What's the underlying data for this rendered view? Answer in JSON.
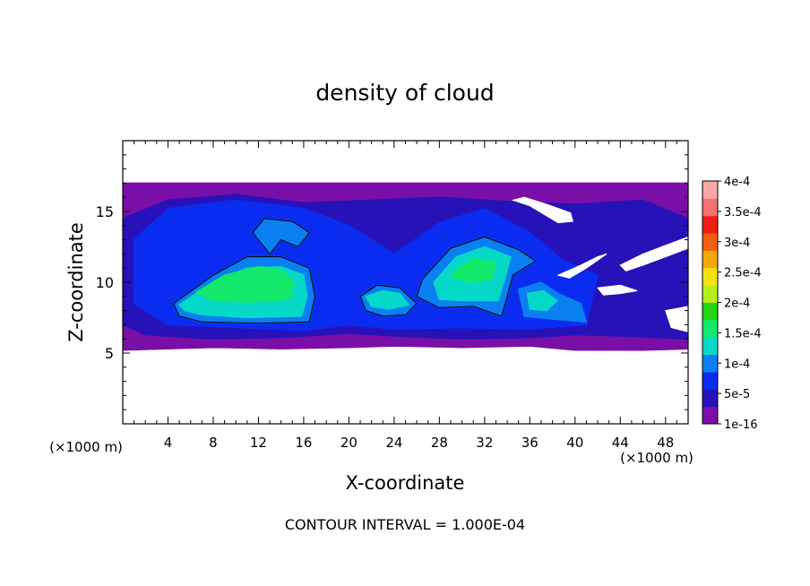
{
  "chart_data": {
    "type": "heatmap",
    "title": "density of cloud",
    "xlabel": "X-coordinate",
    "ylabel": "Z-coordinate",
    "x_unit_left": "(×1000 m)",
    "x_unit_right": "(×1000 m)",
    "xlim": [
      0,
      50
    ],
    "ylim": [
      0,
      20
    ],
    "x_ticks": [
      4,
      8,
      12,
      16,
      20,
      24,
      28,
      32,
      36,
      40,
      44,
      48
    ],
    "y_ticks": [
      5,
      10,
      15
    ],
    "footnote": "CONTOUR INTERVAL = 1.000E-04",
    "colorbar": {
      "labels": [
        "1e-16",
        "5e-5",
        "1e-4",
        "1.5e-4",
        "2e-4",
        "2.5e-4",
        "3e-4",
        "3.5e-4",
        "4e-4"
      ],
      "colors": [
        "#7a0fa8",
        "#2612b8",
        "#0a2cf0",
        "#0a7ff2",
        "#06d8c8",
        "#12e86a",
        "#22d412",
        "#b8ee18",
        "#f2e210",
        "#f4a808",
        "#f45e0a",
        "#ee1e14",
        "#f47272",
        "#f8a8a8"
      ]
    },
    "levels": [
      {
        "value": "1e-16",
        "color": "#7a0fa8",
        "polygon": [
          [
            0,
            17
          ],
          [
            50,
            17
          ],
          [
            50,
            5.3
          ],
          [
            46,
            5.2
          ],
          [
            40,
            5.2
          ],
          [
            36,
            5.5
          ],
          [
            30,
            5.4
          ],
          [
            24,
            5.5
          ],
          [
            20,
            5.4
          ],
          [
            14,
            5.3
          ],
          [
            8,
            5.4
          ],
          [
            0,
            5.2
          ]
        ]
      },
      {
        "value": "5e-5",
        "color": "#2612b8",
        "polygon": [
          [
            0,
            14.5
          ],
          [
            4,
            15.8
          ],
          [
            10,
            16.2
          ],
          [
            16,
            15.6
          ],
          [
            22,
            15.8
          ],
          [
            28,
            16
          ],
          [
            34,
            15.7
          ],
          [
            40,
            15.5
          ],
          [
            46,
            15.8
          ],
          [
            50,
            14.5
          ],
          [
            50,
            6
          ],
          [
            44,
            6.2
          ],
          [
            40,
            6.3
          ],
          [
            36,
            6.1
          ],
          [
            30,
            6
          ],
          [
            24,
            6.2
          ],
          [
            20,
            6.4
          ],
          [
            14,
            6.1
          ],
          [
            8,
            6
          ],
          [
            2,
            6.3
          ],
          [
            0,
            7
          ]
        ]
      },
      {
        "value": "5e-5",
        "color": "#0a2cf0",
        "polygon": [
          [
            1,
            13
          ],
          [
            4,
            15.2
          ],
          [
            10,
            15.8
          ],
          [
            16,
            15.2
          ],
          [
            20,
            14
          ],
          [
            24,
            12
          ],
          [
            28,
            14.2
          ],
          [
            32,
            15.2
          ],
          [
            36,
            13.5
          ],
          [
            39,
            11.5
          ],
          [
            42,
            10.5
          ],
          [
            41,
            7
          ],
          [
            36,
            6.7
          ],
          [
            30,
            6.8
          ],
          [
            24,
            6.7
          ],
          [
            20,
            7
          ],
          [
            16,
            6.6
          ],
          [
            10,
            6.8
          ],
          [
            4,
            7
          ],
          [
            1,
            8.5
          ]
        ]
      },
      {
        "value": "1e-4",
        "color": "#0a7ff2",
        "polygon": [
          [
            4.5,
            8.5
          ],
          [
            8,
            10.5
          ],
          [
            11,
            11.8
          ],
          [
            14,
            11.8
          ],
          [
            16.5,
            11
          ],
          [
            17,
            9
          ],
          [
            16.5,
            7.2
          ],
          [
            12,
            7.1
          ],
          [
            7,
            7.2
          ],
          [
            5,
            7.6
          ]
        ]
      },
      {
        "value": "1e-4",
        "color": "#0a7ff2",
        "polygon": [
          [
            11.5,
            13.5
          ],
          [
            12.5,
            14.5
          ],
          [
            15,
            14.3
          ],
          [
            16.5,
            13.5
          ],
          [
            15.5,
            12.5
          ],
          [
            14,
            13
          ],
          [
            13,
            12
          ]
        ]
      },
      {
        "value": "1e-4",
        "color": "#0a7ff2",
        "polygon": [
          [
            26.5,
            10.2
          ],
          [
            29,
            12.4
          ],
          [
            32,
            13.2
          ],
          [
            35,
            12.3
          ],
          [
            36.5,
            11.5
          ],
          [
            34.5,
            10.5
          ],
          [
            34,
            9
          ],
          [
            33.5,
            7.6
          ],
          [
            31,
            8.3
          ],
          [
            28,
            8.2
          ],
          [
            26,
            9
          ]
        ]
      },
      {
        "value": "1e-4",
        "color": "#0a7ff2",
        "polygon": [
          [
            21,
            9
          ],
          [
            22.5,
            9.8
          ],
          [
            24.5,
            9.6
          ],
          [
            26,
            8.5
          ],
          [
            25,
            7.7
          ],
          [
            23,
            7.6
          ],
          [
            21.5,
            8
          ]
        ]
      },
      {
        "value": "1e-4",
        "color": "#0a7ff2",
        "polygon": [
          [
            35,
            9.5
          ],
          [
            37,
            10
          ],
          [
            38.5,
            9.2
          ],
          [
            40.5,
            8.5
          ],
          [
            41,
            7.2
          ],
          [
            38,
            7.4
          ],
          [
            35.5,
            7.6
          ]
        ]
      },
      {
        "value": "1.5e-4",
        "color": "#06d8c8",
        "polygon": [
          [
            5,
            8.4
          ],
          [
            8,
            10
          ],
          [
            11,
            11
          ],
          [
            14,
            11.1
          ],
          [
            16,
            10.5
          ],
          [
            16.3,
            9
          ],
          [
            15.8,
            7.6
          ],
          [
            11,
            7.5
          ],
          [
            7,
            7.7
          ],
          [
            5.5,
            8
          ]
        ]
      },
      {
        "value": "1.5e-4",
        "color": "#06d8c8",
        "polygon": [
          [
            27.5,
            10
          ],
          [
            29.5,
            11.8
          ],
          [
            32,
            12.5
          ],
          [
            34.3,
            11.8
          ],
          [
            33.8,
            10.3
          ],
          [
            33.2,
            8.7
          ],
          [
            30,
            8.7
          ],
          [
            28,
            8.8
          ]
        ]
      },
      {
        "value": "1.5e-4",
        "color": "#06d8c8",
        "polygon": [
          [
            21.5,
            9
          ],
          [
            23,
            9.4
          ],
          [
            24.5,
            9.2
          ],
          [
            25.3,
            8.4
          ],
          [
            23.5,
            8.1
          ],
          [
            22,
            8.3
          ]
        ]
      },
      {
        "value": "1.5e-4",
        "color": "#06d8c8",
        "polygon": [
          [
            35.8,
            9.2
          ],
          [
            37.2,
            9.4
          ],
          [
            38.4,
            8.7
          ],
          [
            37.5,
            8
          ],
          [
            36,
            8.1
          ]
        ]
      },
      {
        "value": "2e-4",
        "color": "#12e86a",
        "polygon": [
          [
            6.5,
            9.3
          ],
          [
            9,
            10.5
          ],
          [
            12,
            11.1
          ],
          [
            14,
            10.9
          ],
          [
            15.2,
            10
          ],
          [
            14.8,
            8.8
          ],
          [
            11,
            8.6
          ],
          [
            8,
            8.7
          ]
        ]
      },
      {
        "value": "2e-4",
        "color": "#12e86a",
        "polygon": [
          [
            29,
            10.5
          ],
          [
            31,
            11.7
          ],
          [
            33,
            11.4
          ],
          [
            32.6,
            10.2
          ],
          [
            30.5,
            10
          ]
        ]
      }
    ],
    "voids": [
      {
        "polygon": [
          [
            34.5,
            15.8
          ],
          [
            36,
            15.4
          ],
          [
            38.5,
            14.2
          ],
          [
            39.8,
            14.3
          ],
          [
            39.6,
            14.9
          ],
          [
            37.5,
            15.5
          ],
          [
            35.5,
            16
          ]
        ]
      },
      {
        "polygon": [
          [
            38.5,
            10.5
          ],
          [
            40.5,
            11.2
          ],
          [
            42,
            11.8
          ],
          [
            42.8,
            12
          ],
          [
            41,
            11
          ],
          [
            39.5,
            10.3
          ]
        ]
      },
      {
        "polygon": [
          [
            44,
            11.2
          ],
          [
            46,
            12
          ],
          [
            48,
            12.6
          ],
          [
            50,
            13.2
          ],
          [
            50,
            12.4
          ],
          [
            48,
            11.8
          ],
          [
            46,
            11.2
          ],
          [
            44.5,
            10.8
          ]
        ]
      },
      {
        "polygon": [
          [
            42,
            9.6
          ],
          [
            44,
            9.8
          ],
          [
            45.5,
            9.4
          ],
          [
            44,
            9.2
          ],
          [
            42.5,
            9.1
          ]
        ]
      },
      {
        "polygon": [
          [
            48,
            8
          ],
          [
            50,
            8.3
          ],
          [
            50,
            6.5
          ],
          [
            48.5,
            6.8
          ]
        ]
      }
    ],
    "contours": [
      {
        "value": "1e-4",
        "polygon": [
          [
            4.5,
            8.5
          ],
          [
            8,
            10.5
          ],
          [
            11,
            11.8
          ],
          [
            14,
            11.8
          ],
          [
            16.5,
            11
          ],
          [
            17,
            9
          ],
          [
            16.5,
            7.2
          ],
          [
            12,
            7.1
          ],
          [
            7,
            7.2
          ],
          [
            5,
            7.6
          ]
        ]
      },
      {
        "value": "1e-4",
        "polygon": [
          [
            11.5,
            13.5
          ],
          [
            12.5,
            14.5
          ],
          [
            15,
            14.3
          ],
          [
            16.5,
            13.5
          ],
          [
            15.5,
            12.5
          ],
          [
            14,
            13
          ],
          [
            13,
            12
          ]
        ]
      },
      {
        "value": "1e-4",
        "polygon": [
          [
            26.5,
            10.2
          ],
          [
            29,
            12.4
          ],
          [
            32,
            13.2
          ],
          [
            35,
            12.3
          ],
          [
            36.5,
            11.5
          ],
          [
            34.5,
            10.5
          ],
          [
            34,
            9
          ],
          [
            33.5,
            7.6
          ],
          [
            31,
            8.3
          ],
          [
            28,
            8.2
          ],
          [
            26,
            9
          ]
        ]
      },
      {
        "value": "1e-4",
        "polygon": [
          [
            21,
            9
          ],
          [
            22.5,
            9.8
          ],
          [
            24.5,
            9.6
          ],
          [
            26,
            8.5
          ],
          [
            25,
            7.7
          ],
          [
            23,
            7.6
          ],
          [
            21.5,
            8
          ]
        ]
      }
    ]
  }
}
